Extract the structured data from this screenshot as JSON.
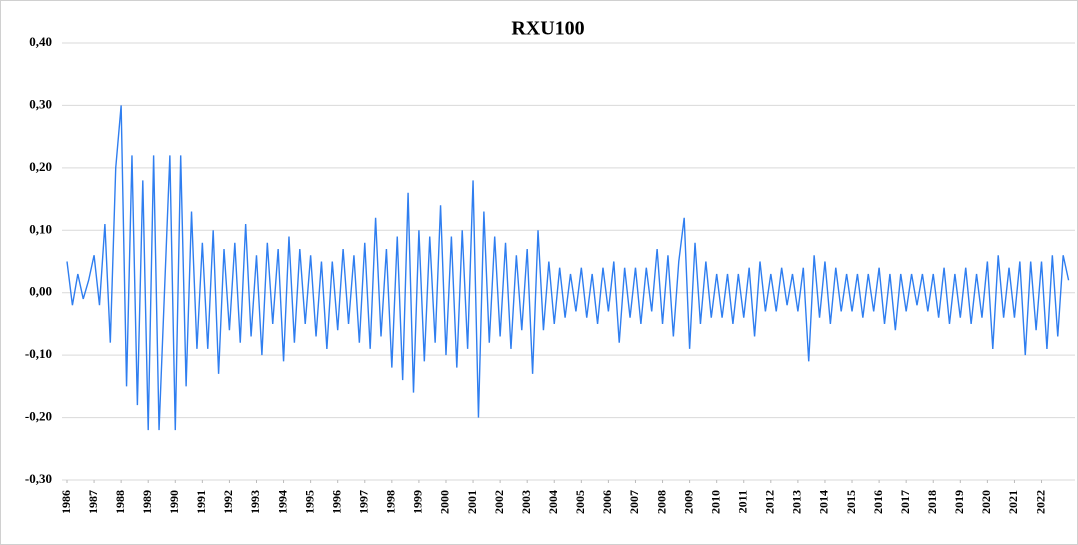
{
  "chart_data": {
    "type": "line",
    "title": "RXU100",
    "x": [
      1986,
      1986.2,
      1986.4,
      1986.6,
      1986.8,
      1987,
      1987.2,
      1987.4,
      1987.6,
      1987.8,
      1988,
      1988.2,
      1988.4,
      1988.6,
      1988.8,
      1989,
      1989.2,
      1989.4,
      1989.6,
      1989.8,
      1990,
      1990.2,
      1990.4,
      1990.6,
      1990.8,
      1991,
      1991.2,
      1991.4,
      1991.6,
      1991.8,
      1992,
      1992.2,
      1992.4,
      1992.6,
      1992.8,
      1993,
      1993.2,
      1993.4,
      1993.6,
      1993.8,
      1994,
      1994.2,
      1994.4,
      1994.6,
      1994.8,
      1995,
      1995.2,
      1995.4,
      1995.6,
      1995.8,
      1996,
      1996.2,
      1996.4,
      1996.6,
      1996.8,
      1997,
      1997.2,
      1997.4,
      1997.6,
      1997.8,
      1998,
      1998.2,
      1998.4,
      1998.6,
      1998.8,
      1999,
      1999.2,
      1999.4,
      1999.6,
      1999.8,
      2000,
      2000.2,
      2000.4,
      2000.6,
      2000.8,
      2001,
      2001.2,
      2001.4,
      2001.6,
      2001.8,
      2002,
      2002.2,
      2002.4,
      2002.6,
      2002.8,
      2003,
      2003.2,
      2003.4,
      2003.6,
      2003.8,
      2004,
      2004.2,
      2004.4,
      2004.6,
      2004.8,
      2005,
      2005.2,
      2005.4,
      2005.6,
      2005.8,
      2006,
      2006.2,
      2006.4,
      2006.6,
      2006.8,
      2007,
      2007.2,
      2007.4,
      2007.6,
      2007.8,
      2008,
      2008.2,
      2008.4,
      2008.6,
      2008.8,
      2009,
      2009.2,
      2009.4,
      2009.6,
      2009.8,
      2010,
      2010.2,
      2010.4,
      2010.6,
      2010.8,
      2011,
      2011.2,
      2011.4,
      2011.6,
      2011.8,
      2012,
      2012.2,
      2012.4,
      2012.6,
      2012.8,
      2013,
      2013.2,
      2013.4,
      2013.6,
      2013.8,
      2014,
      2014.2,
      2014.4,
      2014.6,
      2014.8,
      2015,
      2015.2,
      2015.4,
      2015.6,
      2015.8,
      2016,
      2016.2,
      2016.4,
      2016.6,
      2016.8,
      2017,
      2017.2,
      2017.4,
      2017.6,
      2017.8,
      2018,
      2018.2,
      2018.4,
      2018.6,
      2018.8,
      2019,
      2019.2,
      2019.4,
      2019.6,
      2019.8,
      2020,
      2020.2,
      2020.4,
      2020.6,
      2020.8,
      2021,
      2021.2,
      2021.4,
      2021.6,
      2021.8,
      2022,
      2022.2,
      2022.4,
      2022.6,
      2022.8,
      2023
    ],
    "series": [
      {
        "name": "RXU100",
        "color": "#2f7ef0",
        "values": [
          0.05,
          -0.02,
          0.03,
          -0.01,
          0.02,
          0.06,
          -0.02,
          0.11,
          -0.08,
          0.2,
          0.3,
          -0.15,
          0.22,
          -0.18,
          0.18,
          -0.22,
          0.22,
          -0.22,
          0,
          0.22,
          -0.22,
          0.22,
          -0.15,
          0.13,
          -0.09,
          0.08,
          -0.09,
          0.1,
          -0.13,
          0.07,
          -0.06,
          0.08,
          -0.08,
          0.11,
          -0.07,
          0.06,
          -0.1,
          0.08,
          -0.05,
          0.07,
          -0.11,
          0.09,
          -0.08,
          0.07,
          -0.05,
          0.06,
          -0.07,
          0.05,
          -0.09,
          0.05,
          -0.06,
          0.07,
          -0.05,
          0.06,
          -0.08,
          0.08,
          -0.09,
          0.12,
          -0.07,
          0.07,
          -0.12,
          0.09,
          -0.14,
          0.16,
          -0.16,
          0.1,
          -0.11,
          0.09,
          -0.08,
          0.14,
          -0.1,
          0.09,
          -0.12,
          0.1,
          -0.09,
          0.18,
          -0.2,
          0.13,
          -0.08,
          0.09,
          -0.07,
          0.08,
          -0.09,
          0.06,
          -0.06,
          0.07,
          -0.13,
          0.1,
          -0.06,
          0.05,
          -0.05,
          0.04,
          -0.04,
          0.03,
          -0.03,
          0.04,
          -0.04,
          0.03,
          -0.05,
          0.04,
          -0.03,
          0.05,
          -0.08,
          0.04,
          -0.04,
          0.04,
          -0.05,
          0.04,
          -0.03,
          0.07,
          -0.05,
          0.06,
          -0.07,
          0.05,
          0.12,
          -0.09,
          0.08,
          -0.05,
          0.05,
          -0.04,
          0.03,
          -0.04,
          0.03,
          -0.05,
          0.03,
          -0.04,
          0.04,
          -0.07,
          0.05,
          -0.03,
          0.03,
          -0.03,
          0.04,
          -0.02,
          0.03,
          -0.03,
          0.04,
          -0.11,
          0.06,
          -0.04,
          0.05,
          -0.05,
          0.04,
          -0.03,
          0.03,
          -0.03,
          0.03,
          -0.04,
          0.03,
          -0.03,
          0.04,
          -0.05,
          0.03,
          -0.06,
          0.03,
          -0.03,
          0.03,
          -0.02,
          0.03,
          -0.03,
          0.03,
          -0.04,
          0.04,
          -0.05,
          0.03,
          -0.04,
          0.04,
          -0.05,
          0.03,
          -0.04,
          0.05,
          -0.09,
          0.06,
          -0.04,
          0.04,
          -0.04,
          0.05,
          -0.1,
          0.05,
          -0.06,
          0.05,
          -0.09,
          0.06,
          -0.07,
          0.06,
          0.02
        ]
      }
    ],
    "xlim": [
      1986,
      2023.2
    ],
    "xticks": [
      1986,
      1987,
      1988,
      1989,
      1990,
      1991,
      1992,
      1993,
      1994,
      1995,
      1996,
      1997,
      1998,
      1999,
      2000,
      2001,
      2002,
      2003,
      2004,
      2005,
      2006,
      2007,
      2008,
      2009,
      2010,
      2011,
      2012,
      2013,
      2014,
      2015,
      2016,
      2017,
      2018,
      2019,
      2020,
      2021,
      2022
    ],
    "ylim": [
      -0.3,
      0.4
    ],
    "yticks": [
      {
        "value": -0.3,
        "label": "-0,30"
      },
      {
        "value": -0.2,
        "label": "-0,20"
      },
      {
        "value": -0.1,
        "label": "-0,10"
      },
      {
        "value": 0,
        "label": "0,00"
      },
      {
        "value": 0.1,
        "label": "0,10"
      },
      {
        "value": 0.2,
        "label": "0,20"
      },
      {
        "value": 0.3,
        "label": "0,30"
      },
      {
        "value": 0.4,
        "label": "0,40"
      }
    ],
    "grid": true
  }
}
